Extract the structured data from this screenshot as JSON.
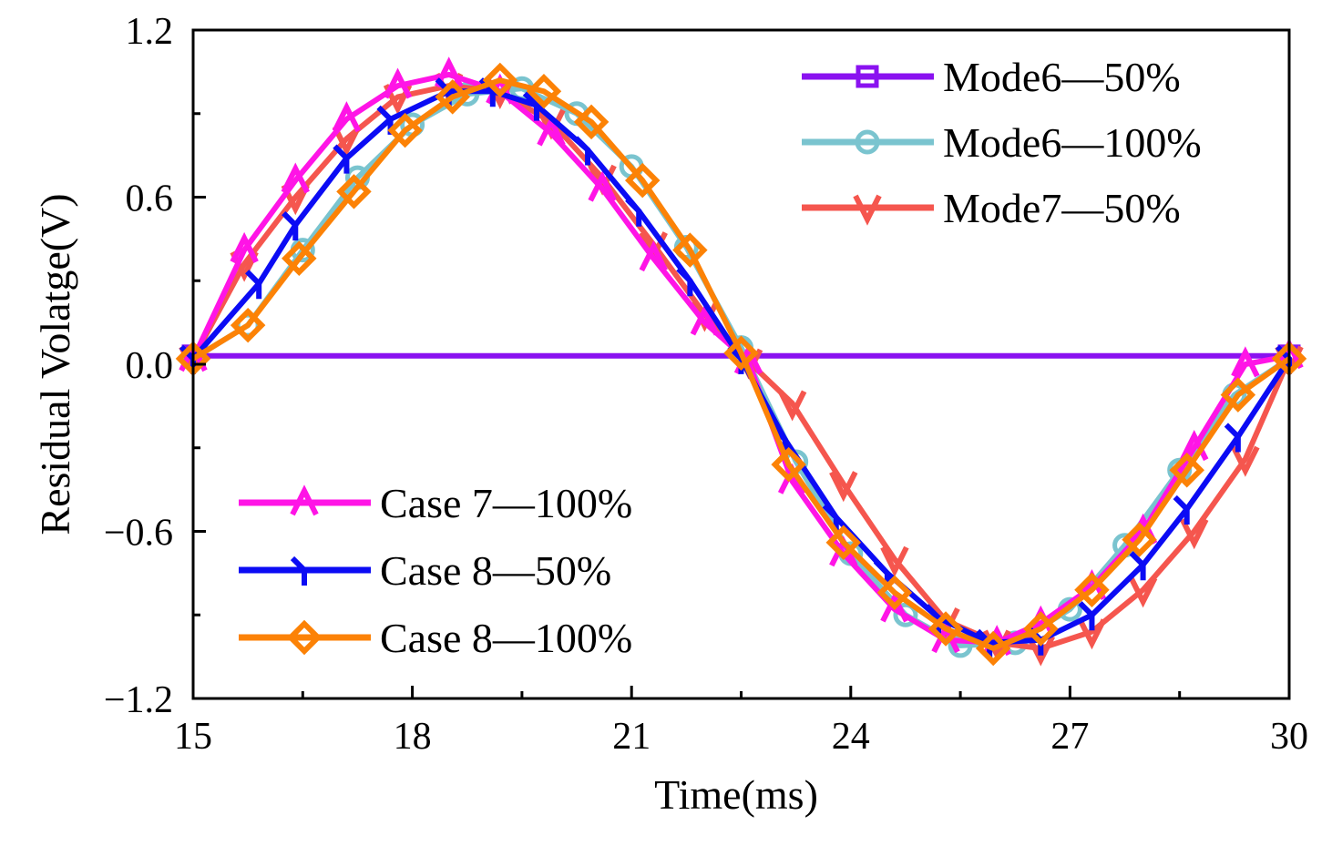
{
  "chart_data": {
    "type": "line",
    "xlabel": "Time(ms)",
    "ylabel": "Residual Volatge(V)",
    "xlim": [
      15,
      30
    ],
    "ylim": [
      -1.2,
      1.2
    ],
    "x_ticks": [
      15,
      18,
      21,
      24,
      27,
      30
    ],
    "x_tick_labels": [
      "15",
      "18",
      "21",
      "24",
      "27",
      "30"
    ],
    "y_ticks": [
      -1.2,
      -0.6,
      0.0,
      0.6,
      1.2
    ],
    "y_tick_labels": [
      "−1.2",
      "−0.6",
      "0.0",
      "0.6",
      "1.2"
    ],
    "grid": false,
    "legend_placement": [
      "top-right",
      "bottom-left"
    ],
    "series": [
      {
        "name": "Mode6—50%",
        "color": "#8a12f0",
        "marker": "square",
        "legend_group": "top-right",
        "x": [
          15,
          30
        ],
        "y": [
          0.03,
          0.03
        ]
      },
      {
        "name": "Mode6—100%",
        "color": "#7ac4cf",
        "marker": "circle",
        "legend_group": "top-right",
        "x": [
          15,
          15.75,
          16.5,
          17.25,
          18,
          18.75,
          19.5,
          20.25,
          21,
          21.75,
          22.5,
          23.25,
          24,
          24.75,
          25.5,
          26.25,
          27,
          27.75,
          28.5,
          29.25,
          30
        ],
        "y": [
          0.02,
          0.14,
          0.41,
          0.67,
          0.86,
          0.97,
          0.99,
          0.9,
          0.71,
          0.42,
          0.06,
          -0.35,
          -0.68,
          -0.9,
          -1.01,
          -1.0,
          -0.88,
          -0.65,
          -0.38,
          -0.11,
          0.02
        ]
      },
      {
        "name": "Mode7—50%",
        "color": "#f5564e",
        "marker": "down-triangle",
        "legend_group": "top-right",
        "x": [
          15,
          15.7,
          16.4,
          17.1,
          17.8,
          18.5,
          19.2,
          19.9,
          20.6,
          21.3,
          22,
          22.6,
          23.2,
          23.9,
          24.6,
          25.3,
          26,
          26.6,
          27.3,
          28,
          28.7,
          29.4,
          30
        ],
        "y": [
          0.02,
          0.36,
          0.6,
          0.81,
          0.96,
          1.0,
          0.98,
          0.87,
          0.67,
          0.43,
          0.18,
          0.01,
          -0.14,
          -0.43,
          -0.7,
          -0.92,
          -1.0,
          -1.02,
          -0.96,
          -0.81,
          -0.6,
          -0.34,
          0.02
        ]
      },
      {
        "name": "Case 7—100%",
        "color": "#ff14e6",
        "marker": "up-triangle",
        "legend_group": "bottom-left",
        "x": [
          15,
          15.7,
          16.4,
          17.1,
          17.8,
          18.5,
          19.2,
          19.9,
          20.6,
          21.3,
          22,
          22.6,
          23.2,
          23.9,
          24.6,
          25.3,
          26,
          26.6,
          27.3,
          28,
          28.7,
          29.4,
          30
        ],
        "y": [
          0.02,
          0.41,
          0.66,
          0.88,
          1.0,
          1.04,
          0.98,
          0.83,
          0.63,
          0.38,
          0.15,
          0.01,
          -0.42,
          -0.68,
          -0.88,
          -0.99,
          -1.0,
          -0.93,
          -0.8,
          -0.6,
          -0.3,
          0.0,
          0.03
        ]
      },
      {
        "name": "Case 8—50%",
        "color": "#0b0bf4",
        "marker": "left-down-hook",
        "legend_group": "bottom-left",
        "x": [
          15,
          15.9,
          16.4,
          17.1,
          17.7,
          18.5,
          19.1,
          19.7,
          20.4,
          21.1,
          21.8,
          22.5,
          23.1,
          23.8,
          24.5,
          25.2,
          25.9,
          26.6,
          27.3,
          28,
          28.6,
          29.3,
          30
        ],
        "y": [
          0.02,
          0.29,
          0.5,
          0.74,
          0.88,
          0.98,
          0.98,
          0.93,
          0.77,
          0.55,
          0.3,
          0.02,
          -0.27,
          -0.55,
          -0.75,
          -0.91,
          -1.0,
          -0.99,
          -0.9,
          -0.72,
          -0.52,
          -0.26,
          0.02
        ]
      },
      {
        "name": "Case 8—100%",
        "color": "#fc8206",
        "marker": "diamond",
        "legend_group": "bottom-left",
        "x": [
          15,
          15.75,
          16.45,
          17.2,
          17.9,
          18.55,
          19.2,
          19.8,
          20.45,
          21.15,
          21.8,
          22.5,
          23.15,
          23.9,
          24.6,
          25.3,
          25.95,
          26.6,
          27.3,
          27.95,
          28.6,
          29.3,
          30
        ],
        "y": [
          0.02,
          0.14,
          0.38,
          0.62,
          0.84,
          0.96,
          1.02,
          0.98,
          0.87,
          0.66,
          0.41,
          0.04,
          -0.36,
          -0.64,
          -0.82,
          -0.95,
          -1.02,
          -0.95,
          -0.81,
          -0.63,
          -0.38,
          -0.11,
          0.02
        ]
      }
    ]
  }
}
